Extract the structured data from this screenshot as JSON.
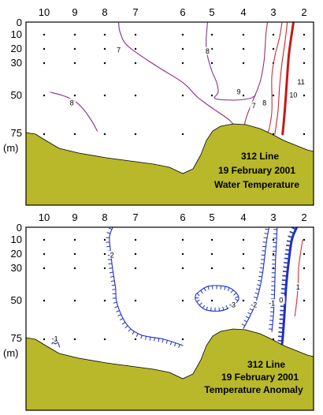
{
  "chart_data": [
    {
      "type": "contour",
      "title_lines": [
        "312 Line",
        "19 February 2001",
        "Water Temperature"
      ],
      "ylabel": "(m)",
      "station_labels": [
        "10",
        "9",
        "8",
        "7",
        "6",
        "5",
        "4",
        "3",
        "2"
      ],
      "depth_labels": [
        "0",
        "10",
        "20",
        "30",
        "50",
        "75"
      ],
      "sample_depths": [
        10,
        20,
        30,
        50,
        75
      ],
      "contours": [
        {
          "level": "7",
          "color": "#8a2a8a",
          "heavy": false,
          "points": [
            [
              7.55,
              0
            ],
            [
              7.5,
              8
            ],
            [
              7.25,
              18
            ],
            [
              6.6,
              31
            ],
            [
              6.0,
              42
            ],
            [
              5.5,
              51
            ],
            [
              5.0,
              58
            ],
            [
              4.5,
              65
            ],
            [
              4.25,
              70
            ],
            [
              4.0,
              73
            ]
          ]
        },
        {
          "level": "8",
          "color": "#8a2a8a",
          "heavy": false,
          "points": [
            [
              9.8,
              48
            ],
            [
              9.4,
              50
            ],
            [
              9.05,
              53
            ],
            [
              8.75,
              58
            ],
            [
              8.45,
              66
            ],
            [
              8.25,
              73
            ]
          ]
        },
        {
          "level": "8",
          "color": "#7a3a9a",
          "heavy": false,
          "points": [
            [
              5.15,
              0
            ],
            [
              5.2,
              15
            ],
            [
              5.15,
              25
            ],
            [
              5.0,
              35
            ],
            [
              4.85,
              42
            ],
            [
              4.8,
              48
            ],
            [
              4.9,
              52
            ],
            [
              4.3,
              53
            ],
            [
              3.8,
              52
            ],
            [
              3.6,
              50
            ]
          ]
        },
        {
          "level": "9",
          "color": "#a0306a",
          "heavy": false,
          "points": [
            [
              3.2,
              0
            ],
            [
              3.25,
              10
            ],
            [
              3.28,
              20
            ],
            [
              3.32,
              30
            ],
            [
              3.45,
              42
            ],
            [
              3.7,
              54
            ],
            [
              3.9,
              64
            ],
            [
              4.0,
              72
            ]
          ]
        },
        {
          "level": "10",
          "color": "#c0303a",
          "heavy": false,
          "points": [
            [
              2.72,
              0
            ],
            [
              2.8,
              12
            ],
            [
              2.95,
              25
            ],
            [
              3.05,
              38
            ],
            [
              3.05,
              50
            ],
            [
              3.05,
              60
            ],
            [
              3.12,
              70
            ],
            [
              3.2,
              75
            ]
          ]
        },
        {
          "level": "",
          "color": "#c82828",
          "heavy": false,
          "points": [
            [
              2.55,
              0
            ],
            [
              2.62,
              15
            ],
            [
              2.72,
              30
            ],
            [
              2.8,
              45
            ],
            [
              2.85,
              60
            ],
            [
              2.95,
              75
            ]
          ]
        },
        {
          "level": "11",
          "color": "#c81818",
          "heavy": true,
          "points": [
            [
              2.35,
              0
            ],
            [
              2.42,
              12
            ],
            [
              2.5,
              25
            ],
            [
              2.55,
              38
            ],
            [
              2.6,
              52
            ],
            [
              2.65,
              65
            ],
            [
              2.7,
              75
            ]
          ]
        }
      ],
      "contour_labels": [
        {
          "text": "7",
          "x": 7.55,
          "y": 21
        },
        {
          "text": "8",
          "x": 9.1,
          "y": 55
        },
        {
          "text": "8",
          "x": 5.15,
          "y": 22
        },
        {
          "text": "9",
          "x": 4.15,
          "y": 48
        },
        {
          "text": "7",
          "x": 3.65,
          "y": 57
        },
        {
          "text": "8",
          "x": 3.3,
          "y": 55
        },
        {
          "text": "11",
          "x": 2.1,
          "y": 42
        },
        {
          "text": "10",
          "x": 2.35,
          "y": 50
        }
      ]
    },
    {
      "type": "contour",
      "title_lines": [
        "312 Line",
        "19 February 2001",
        "Temperature Anomaly"
      ],
      "ylabel": "(m)",
      "station_labels": [
        "10",
        "9",
        "8",
        "7",
        "6",
        "5",
        "4",
        "3",
        "2"
      ],
      "depth_labels": [
        "0",
        "10",
        "20",
        "30",
        "50",
        "75"
      ],
      "sample_depths": [
        10,
        20,
        30,
        50,
        75
      ],
      "contours": [
        {
          "level": "-1",
          "color": "#2030c0",
          "heavy": false,
          "hatched": true,
          "points": [
            [
              9.75,
              78
            ],
            [
              9.65,
              75
            ],
            [
              9.55,
              77
            ],
            [
              9.5,
              80
            ]
          ]
        },
        {
          "level": "-2",
          "color": "#2030c0",
          "heavy": false,
          "hatched": true,
          "points": [
            [
              7.75,
              0
            ],
            [
              7.85,
              8
            ],
            [
              7.8,
              20
            ],
            [
              7.75,
              30
            ],
            [
              7.65,
              42
            ],
            [
              7.6,
              52
            ],
            [
              7.3,
              65
            ],
            [
              6.9,
              72
            ],
            [
              6.4,
              75
            ],
            [
              6.0,
              79
            ]
          ]
        },
        {
          "level": "-3",
          "color": "#2030c0",
          "heavy": false,
          "hatched": true,
          "closed": true,
          "points": [
            [
              5.55,
              46
            ],
            [
              5.1,
              41
            ],
            [
              4.45,
              42
            ],
            [
              4.15,
              49
            ],
            [
              4.6,
              56
            ],
            [
              5.2,
              56
            ],
            [
              5.55,
              50
            ],
            [
              5.55,
              46
            ]
          ]
        },
        {
          "level": "-2",
          "color": "#2030c0",
          "heavy": false,
          "hatched": true,
          "points": [
            [
              3.15,
              0
            ],
            [
              3.22,
              10
            ],
            [
              3.28,
              20
            ],
            [
              3.35,
              32
            ],
            [
              3.45,
              42
            ],
            [
              3.6,
              52
            ],
            [
              3.78,
              60
            ],
            [
              4.0,
              68
            ]
          ]
        },
        {
          "level": "-1",
          "color": "#2030c0",
          "heavy": false,
          "hatched": true,
          "points": [
            [
              2.88,
              0
            ],
            [
              2.9,
              12
            ],
            [
              2.93,
              25
            ],
            [
              2.95,
              38
            ],
            [
              2.97,
              50
            ],
            [
              3.0,
              60
            ],
            [
              3.05,
              70
            ]
          ]
        },
        {
          "level": "0",
          "color": "#2030c0",
          "heavy": true,
          "hatched": true,
          "points": [
            [
              2.25,
              0
            ],
            [
              2.4,
              10
            ],
            [
              2.5,
              25
            ],
            [
              2.58,
              40
            ],
            [
              2.62,
              52
            ],
            [
              2.65,
              62
            ],
            [
              2.7,
              75
            ],
            [
              2.75,
              82
            ]
          ]
        },
        {
          "level": "1",
          "color": "#d03030",
          "heavy": false,
          "hatched": false,
          "points": [
            [
              2.05,
              10
            ],
            [
              2.12,
              20
            ],
            [
              2.18,
              30
            ],
            [
              2.2,
              42
            ],
            [
              2.25,
              52
            ],
            [
              2.3,
              60
            ]
          ]
        }
      ],
      "contour_labels": [
        {
          "text": "-1",
          "x": 9.65,
          "y": 75
        },
        {
          "text": "-2",
          "x": 7.8,
          "y": 21
        },
        {
          "text": "-3",
          "x": 4.35,
          "y": 53
        },
        {
          "text": "-2",
          "x": 3.65,
          "y": 53
        },
        {
          "text": "-1",
          "x": 3.05,
          "y": 52
        },
        {
          "text": "0",
          "x": 2.75,
          "y": 50
        },
        {
          "text": "1",
          "x": 2.2,
          "y": 42
        }
      ]
    }
  ],
  "colors": {
    "seafloor_fill": "#b8b82a",
    "frame": "#000000",
    "station_dot": "#000000",
    "hatch": "#2030c0"
  }
}
